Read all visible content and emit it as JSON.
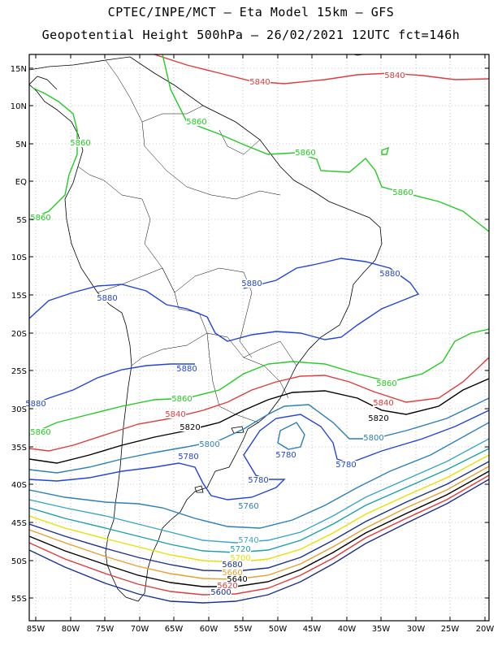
{
  "title_line1": "CPTEC/INPE/MCT –  Eta Model 15km – GFS",
  "title_line2": "Geopotential Height 500hPa – 26/02/2021 12UTC fct=146h",
  "lat_ticks": [
    "15N",
    "10N",
    "5N",
    "EQ",
    "5S",
    "10S",
    "15S",
    "20S",
    "25S",
    "30S",
    "35S",
    "40S",
    "45S",
    "50S",
    "55S"
  ],
  "lon_ticks": [
    "85W",
    "80W",
    "75W",
    "70W",
    "65W",
    "60W",
    "55W",
    "50W",
    "45W",
    "40W",
    "35W",
    "30W",
    "25W",
    "20W"
  ],
  "contour_colors": {
    "5860": "#22cc22",
    "5880": "#2244dd",
    "5840": "#e23a3a",
    "5820": "#000000",
    "5800": "#2c7fb8",
    "5780": "#2244dd",
    "5760": "#2c7fb8",
    "5740": "#3aa6c8",
    "5720": "#1ba0a8",
    "5700": "#e8e000",
    "5680": "#1b2f8f",
    "5660": "#e8a02a",
    "5640": "#000000",
    "5620": "#e23a3a",
    "5600": "#1b2f8f"
  },
  "labels": [
    {
      "text": "5840",
      "color": "#e23a3a"
    },
    {
      "text": "5840",
      "color": "#e23a3a"
    },
    {
      "text": "5860",
      "color": "#22cc22"
    },
    {
      "text": "5860",
      "color": "#22cc22"
    },
    {
      "text": "5860",
      "color": "#22cc22"
    },
    {
      "text": "5860",
      "color": "#22cc22"
    },
    {
      "text": "5860",
      "color": "#22cc22"
    },
    {
      "text": "5880",
      "color": "#2244dd"
    },
    {
      "text": "5880",
      "color": "#2244dd"
    },
    {
      "text": "5880",
      "color": "#2244dd"
    },
    {
      "text": "5880",
      "color": "#2244dd"
    },
    {
      "text": "5880",
      "color": "#2244dd"
    },
    {
      "text": "5860",
      "color": "#22cc22"
    },
    {
      "text": "5860",
      "color": "#22cc22"
    },
    {
      "text": "5860",
      "color": "#22cc22"
    },
    {
      "text": "5840",
      "color": "#e23a3a"
    },
    {
      "text": "5840",
      "color": "#e23a3a"
    },
    {
      "text": "5820",
      "color": "#000000"
    },
    {
      "text": "5820",
      "color": "#000000"
    },
    {
      "text": "5800",
      "color": "#2c7fb8"
    },
    {
      "text": "5800",
      "color": "#2c7fb8"
    },
    {
      "text": "5780",
      "color": "#2244dd"
    },
    {
      "text": "5780",
      "color": "#2244dd"
    },
    {
      "text": "5780",
      "color": "#2244dd"
    },
    {
      "text": "5780",
      "color": "#2244dd"
    },
    {
      "text": "5760",
      "color": "#2c7fb8"
    },
    {
      "text": "5740",
      "color": "#3aa6c8"
    },
    {
      "text": "5720",
      "color": "#1ba0a8"
    },
    {
      "text": "5700",
      "color": "#e8e000"
    },
    {
      "text": "5680",
      "color": "#1b2f8f"
    },
    {
      "text": "5660",
      "color": "#e8a02a"
    },
    {
      "text": "5640",
      "color": "#000000"
    },
    {
      "text": "5620",
      "color": "#e23a3a"
    },
    {
      "text": "5600",
      "color": "#1b2f8f"
    }
  ]
}
